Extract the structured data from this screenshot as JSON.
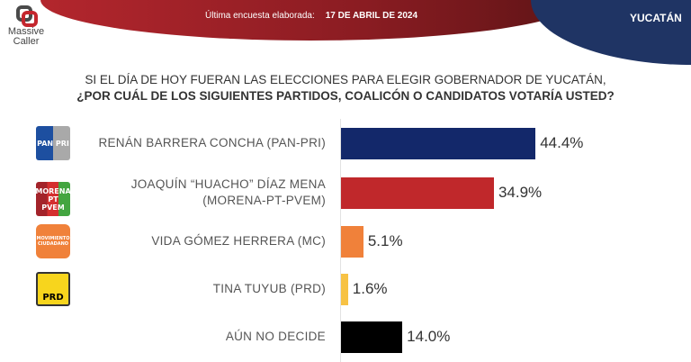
{
  "header": {
    "brand": "Massive Caller",
    "survey_label": "Última encuesta elaborada:",
    "survey_date": "17 DE ABRIL DE 2024",
    "region": "YUCATÁN"
  },
  "question": {
    "line1": "SI EL DÍA DE HOY FUERAN LAS ELECCIONES PARA ELEGIR GOBERNADOR DE YUCATÁN,",
    "line2": "¿POR CUÁL DE LOS SIGUIENTES PARTIDOS, COALICÓN  O CANDIDATOS VOTARÍA USTED?"
  },
  "chart_data": {
    "type": "bar",
    "orientation": "horizontal",
    "categories": [
      "RENÁN BARRERA CONCHA  (PAN-PRI)",
      "JOAQUÍN “HUACHO” DÍAZ MENA (MORENA-PT-PVEM)",
      "VIDA GÓMEZ HERRERA (MC)",
      "TINA TUYUB (PRD)",
      "AÚN NO DECIDE"
    ],
    "category_lines": [
      [
        "RENÁN BARRERA CONCHA  (PAN-PRI)"
      ],
      [
        "JOAQUÍN “HUACHO” DÍAZ MENA",
        "(MORENA-PT-PVEM)"
      ],
      [
        "VIDA GÓMEZ HERRERA (MC)"
      ],
      [
        "TINA TUYUB (PRD)"
      ],
      [
        "AÚN NO DECIDE"
      ]
    ],
    "values": [
      44.4,
      34.9,
      5.1,
      1.6,
      14.0
    ],
    "data_labels": [
      "44.4%",
      "34.9%",
      "5.1%",
      "1.6%",
      "14.0%"
    ],
    "colors": [
      "#13286a",
      "#c0282b",
      "#f0813a",
      "#f7c244",
      "#000000"
    ],
    "icons": [
      "pan-pri-logo",
      "morena-pt-pvem-logo",
      "mc-logo",
      "prd-logo",
      null
    ],
    "icon_text": [
      "PAN PRI",
      "MORENA PT PVEM",
      "MOVIMIENTO CIUDADANO",
      "PRD",
      null
    ],
    "xlim": [
      0,
      80
    ],
    "grid": false,
    "legend": "none"
  }
}
